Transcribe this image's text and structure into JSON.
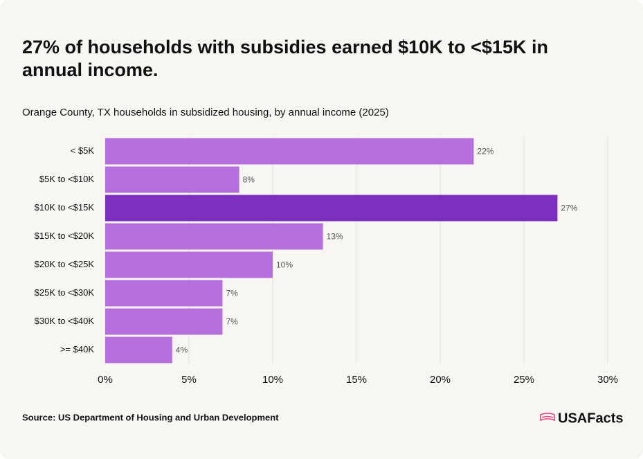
{
  "title": "27% of households with subsidies earned $10K to <$15K in annual income.",
  "source": "Source: US Department of Housing and Urban Development",
  "logo": "USAFacts",
  "chart_data": {
    "type": "hbar",
    "subtitle": "Orange County, TX households in subsidized housing, by annual income (2025)",
    "categories": [
      "< $5K",
      "$5K to <$10K",
      "$10K to <$15K",
      "$15K to <$20K",
      "$20K to <$25K",
      "$25K to <$30K",
      "$30K to <$40K",
      ">= $40K"
    ],
    "values": [
      22,
      8,
      27,
      13,
      10,
      7,
      7,
      4
    ],
    "value_labels": [
      "22%",
      "8%",
      "27%",
      "13%",
      "10%",
      "7%",
      "7%",
      "4%"
    ],
    "colors": [
      "#b56fdc",
      "#b56fdc",
      "#7d30c0",
      "#b56fdc",
      "#b56fdc",
      "#b56fdc",
      "#b56fdc",
      "#b56fdc"
    ],
    "xlim": [
      0,
      30
    ],
    "xticks": [
      {
        "value": 0,
        "label": "0%"
      },
      {
        "value": 5,
        "label": "5%"
      },
      {
        "value": 10,
        "label": "10%"
      },
      {
        "value": 15,
        "label": "15%"
      },
      {
        "value": 20,
        "label": "20%"
      },
      {
        "value": 25,
        "label": "25%"
      },
      {
        "value": 30,
        "label": "30%"
      }
    ],
    "grid": true
  }
}
